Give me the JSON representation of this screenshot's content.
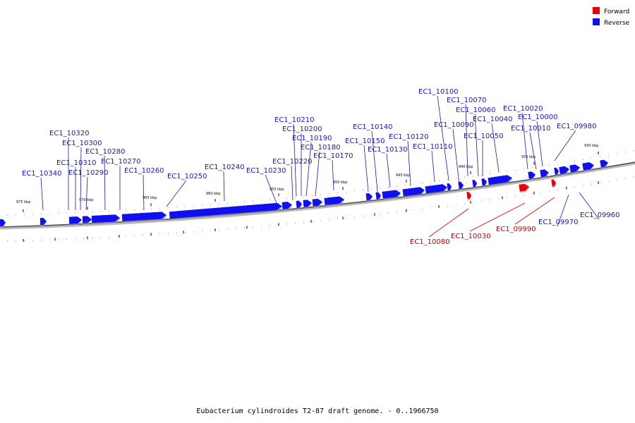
{
  "legend": {
    "forward_label": "Forward",
    "reverse_label": "Reverse",
    "forward_color": "#ee0000",
    "reverse_color": "#1010ee"
  },
  "caption": "Eubacterium cylindroides T2-87 draft genome. - 0..1966750",
  "scale_labels": [
    "975 kbp",
    "970 kbp",
    "965 kbp",
    "960 kbp",
    "955 kbp",
    "950 kbp",
    "945 kbp",
    "940 kbp",
    "935 kbp",
    "930 kbp"
  ],
  "genes": [
    {
      "id": "EC1_10340",
      "strand": "reverse"
    },
    {
      "id": "EC1_10320",
      "strand": "reverse"
    },
    {
      "id": "EC1_10310",
      "strand": "reverse"
    },
    {
      "id": "EC1_10300",
      "strand": "reverse"
    },
    {
      "id": "EC1_10290",
      "strand": "reverse"
    },
    {
      "id": "EC1_10280",
      "strand": "reverse"
    },
    {
      "id": "EC1_10270",
      "strand": "reverse"
    },
    {
      "id": "EC1_10260",
      "strand": "reverse"
    },
    {
      "id": "EC1_10250",
      "strand": "reverse"
    },
    {
      "id": "EC1_10240",
      "strand": "reverse"
    },
    {
      "id": "EC1_10230",
      "strand": "reverse"
    },
    {
      "id": "EC1_10220",
      "strand": "reverse"
    },
    {
      "id": "EC1_10210",
      "strand": "reverse"
    },
    {
      "id": "EC1_10200",
      "strand": "reverse"
    },
    {
      "id": "EC1_10190",
      "strand": "reverse"
    },
    {
      "id": "EC1_10180",
      "strand": "reverse"
    },
    {
      "id": "EC1_10170",
      "strand": "reverse"
    },
    {
      "id": "EC1_10150",
      "strand": "reverse"
    },
    {
      "id": "EC1_10140",
      "strand": "reverse"
    },
    {
      "id": "EC1_10130",
      "strand": "reverse"
    },
    {
      "id": "EC1_10120",
      "strand": "reverse"
    },
    {
      "id": "EC1_10110",
      "strand": "reverse"
    },
    {
      "id": "EC1_10100",
      "strand": "reverse"
    },
    {
      "id": "EC1_10090",
      "strand": "reverse"
    },
    {
      "id": "EC1_10080",
      "strand": "forward"
    },
    {
      "id": "EC1_10070",
      "strand": "reverse"
    },
    {
      "id": "EC1_10060",
      "strand": "reverse"
    },
    {
      "id": "EC1_10050",
      "strand": "reverse"
    },
    {
      "id": "EC1_10040",
      "strand": "reverse"
    },
    {
      "id": "EC1_10030",
      "strand": "forward"
    },
    {
      "id": "EC1_10020",
      "strand": "reverse"
    },
    {
      "id": "EC1_10010",
      "strand": "reverse"
    },
    {
      "id": "EC1_10000",
      "strand": "reverse"
    },
    {
      "id": "EC1_09990",
      "strand": "forward"
    },
    {
      "id": "EC1_09980",
      "strand": "reverse"
    },
    {
      "id": "EC1_09970",
      "strand": "reverse"
    },
    {
      "id": "EC1_09960",
      "strand": "reverse"
    }
  ]
}
